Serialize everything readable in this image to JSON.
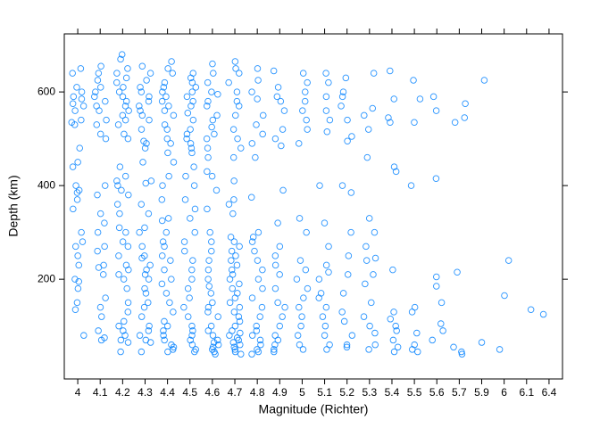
{
  "chart_data": {
    "type": "strip",
    "x_label": "Magnitude (Richter)",
    "y_label": "Depth (km)",
    "color": "#0080ff",
    "ylim": [
      -13,
      724
    ],
    "yticks": [
      200,
      400,
      600
    ],
    "groups": [
      {
        "category": "4",
        "values": [
          650,
          640,
          610,
          600,
          590,
          585,
          575,
          570,
          560,
          540,
          535,
          530,
          480,
          450,
          440,
          400,
          390,
          385,
          370,
          350,
          300,
          280,
          270,
          250,
          230,
          200,
          195,
          180,
          150,
          135,
          80
        ]
      },
      {
        "category": "4.1",
        "values": [
          655,
          640,
          625,
          610,
          600,
          590,
          580,
          570,
          560,
          540,
          530,
          510,
          500,
          400,
          380,
          340,
          320,
          300,
          270,
          260,
          230,
          225,
          210,
          160,
          140,
          120,
          90,
          75,
          70
        ]
      },
      {
        "category": "4.2",
        "values": [
          680,
          670,
          650,
          640,
          630,
          620,
          610,
          600,
          590,
          580,
          570,
          560,
          550,
          540,
          530,
          510,
          500,
          440,
          420,
          410,
          400,
          390,
          380,
          360,
          340,
          310,
          300,
          280,
          270,
          250,
          230,
          220,
          210,
          200,
          180,
          150,
          130,
          110,
          100,
          90,
          80,
          70,
          65,
          45
        ]
      },
      {
        "category": "4.3",
        "values": [
          655,
          640,
          625,
          610,
          600,
          590,
          580,
          570,
          560,
          550,
          540,
          520,
          495,
          490,
          480,
          450,
          410,
          405,
          360,
          340,
          310,
          300,
          270,
          250,
          245,
          230,
          220,
          210,
          200,
          180,
          170,
          150,
          140,
          120,
          100,
          90,
          80,
          70,
          65,
          45
        ]
      },
      {
        "category": "4.4",
        "values": [
          665,
          650,
          640,
          620,
          610,
          600,
          590,
          580,
          570,
          560,
          550,
          530,
          520,
          500,
          490,
          470,
          450,
          420,
          400,
          370,
          330,
          325,
          300,
          280,
          270,
          250,
          240,
          220,
          200,
          190,
          170,
          150,
          130,
          110,
          100,
          90,
          80,
          70,
          60,
          55,
          50,
          45
        ]
      },
      {
        "category": "4.5",
        "values": [
          640,
          630,
          620,
          610,
          600,
          590,
          580,
          570,
          555,
          540,
          520,
          510,
          500,
          490,
          480,
          470,
          440,
          420,
          400,
          370,
          350,
          330,
          300,
          280,
          260,
          240,
          220,
          200,
          180,
          160,
          140,
          120,
          100,
          90,
          80,
          70,
          60,
          50,
          45
        ]
      },
      {
        "category": "4.6",
        "values": [
          660,
          640,
          620,
          600,
          595,
          580,
          570,
          550,
          540,
          525,
          510,
          500,
          480,
          460,
          430,
          420,
          390,
          350,
          300,
          280,
          260,
          240,
          220,
          200,
          185,
          170,
          150,
          140,
          130,
          120,
          100,
          90,
          80,
          70,
          65,
          60,
          55,
          50,
          45,
          40
        ]
      },
      {
        "category": "4.7",
        "values": [
          665,
          650,
          640,
          620,
          600,
          580,
          570,
          550,
          520,
          500,
          480,
          460,
          410,
          370,
          360,
          340,
          290,
          280,
          270,
          260,
          250,
          240,
          230,
          220,
          210,
          200,
          190,
          180,
          170,
          160,
          150,
          140,
          130,
          120,
          110,
          100,
          90,
          85,
          80,
          75,
          70,
          65,
          60,
          55,
          50,
          45,
          40
        ]
      },
      {
        "category": "4.8",
        "values": [
          650,
          625,
          600,
          585,
          550,
          530,
          510,
          490,
          460,
          375,
          300,
          290,
          280,
          260,
          240,
          220,
          200,
          180,
          160,
          140,
          120,
          100,
          90,
          80,
          70,
          60,
          50,
          45,
          40
        ]
      },
      {
        "category": "4.9",
        "values": [
          645,
          610,
          590,
          580,
          560,
          520,
          500,
          485,
          390,
          320,
          270,
          250,
          230,
          210,
          180,
          150,
          140,
          120,
          100,
          80,
          70,
          60,
          50,
          45
        ]
      },
      {
        "category": "5",
        "values": [
          640,
          620,
          600,
          580,
          560,
          540,
          520,
          490,
          330,
          300,
          240,
          220,
          200,
          180,
          160,
          140,
          120,
          100,
          80,
          60,
          50
        ]
      },
      {
        "category": "5.1",
        "values": [
          640,
          620,
          590,
          560,
          540,
          515,
          400,
          320,
          270,
          230,
          215,
          200,
          170,
          160,
          140,
          120,
          100,
          80,
          60,
          50
        ]
      },
      {
        "category": "5.2",
        "values": [
          630,
          600,
          590,
          570,
          540,
          505,
          495,
          400,
          385,
          300,
          250,
          210,
          170,
          130,
          110,
          80,
          60,
          55
        ]
      },
      {
        "category": "5.3",
        "values": [
          640,
          565,
          550,
          520,
          460,
          330,
          300,
          270,
          245,
          240,
          210,
          190,
          150,
          120,
          100,
          85,
          60,
          50
        ]
      },
      {
        "category": "5.4",
        "values": [
          645,
          585,
          545,
          535,
          440,
          430,
          220,
          130,
          115,
          100,
          90,
          70,
          55,
          45
        ]
      },
      {
        "category": "5.5",
        "values": [
          625,
          585,
          535,
          400,
          140,
          130,
          85,
          60,
          50,
          45
        ]
      },
      {
        "category": "5.6",
        "values": [
          590,
          560,
          415,
          205,
          185,
          150,
          105,
          90,
          70
        ]
      },
      {
        "category": "5.7",
        "values": [
          575,
          545,
          535,
          215,
          55,
          45,
          40
        ]
      },
      {
        "category": "5.9",
        "values": [
          625,
          65
        ]
      },
      {
        "category": "6",
        "values": [
          240,
          165,
          50
        ]
      },
      {
        "category": "6.1",
        "values": [
          135
        ]
      },
      {
        "category": "6.4",
        "values": [
          125
        ]
      }
    ]
  }
}
